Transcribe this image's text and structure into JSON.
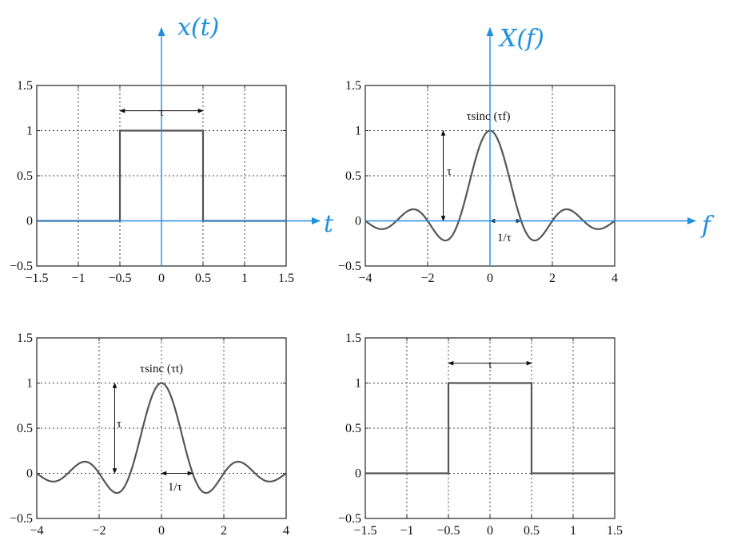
{
  "colors": {
    "curve": "#555555",
    "frame": "#222222",
    "grid": "#444444",
    "handwriting": "#1e90e0",
    "annotation": "#111111"
  },
  "chart_data": [
    {
      "type": "line",
      "name": "rect-time",
      "x": [
        -1.5,
        -0.5,
        -0.5,
        0.5,
        0.5,
        1.5
      ],
      "y": [
        0,
        0,
        1,
        1,
        0,
        0
      ],
      "xlim": [
        -1.5,
        1.5
      ],
      "ylim": [
        -0.5,
        1.5
      ],
      "xticks": [
        -1.5,
        -1,
        -0.5,
        0,
        0.5,
        1,
        1.5
      ],
      "yticks": [
        -0.5,
        0,
        0.5,
        1,
        1.5
      ],
      "xtick_labels": [
        "−1.5",
        "−1",
        "−0.5",
        "0",
        "0.5",
        "1",
        "1.5"
      ],
      "ytick_labels": [
        "−0.5",
        "0",
        "0.5",
        "1",
        "1.5"
      ],
      "grid": true,
      "annotations": {
        "width_label": "τ"
      },
      "handwriting": {
        "ylabel": "x(t)",
        "xlabel": "t"
      }
    },
    {
      "type": "line",
      "name": "sinc-frequency",
      "function": "sinc",
      "tau": 1,
      "xlim": [
        -4,
        4
      ],
      "ylim": [
        -0.5,
        1.5
      ],
      "xticks": [
        -4,
        -2,
        0,
        2,
        4
      ],
      "yticks": [
        -0.5,
        0,
        0.5,
        1,
        1.5
      ],
      "xtick_labels": [
        "−4",
        "−2",
        "0",
        "2",
        "4"
      ],
      "ytick_labels": [
        "−0.5",
        "0",
        "0.5",
        "1",
        "1.5"
      ],
      "grid": true,
      "annotations": {
        "curve_label": "τsinc (τf)",
        "height_label": "τ",
        "zero_label": "1/τ"
      },
      "handwriting": {
        "ylabel": "X(f)",
        "xlabel": "f"
      }
    },
    {
      "type": "line",
      "name": "sinc-time",
      "function": "sinc",
      "tau": 1,
      "xlim": [
        -4,
        4
      ],
      "ylim": [
        -0.5,
        1.5
      ],
      "xticks": [
        -4,
        -2,
        0,
        2,
        4
      ],
      "yticks": [
        -0.5,
        0,
        0.5,
        1,
        1.5
      ],
      "xtick_labels": [
        "−4",
        "−2",
        "0",
        "2",
        "4"
      ],
      "ytick_labels": [
        "−0.5",
        "0",
        "0.5",
        "1",
        "1.5"
      ],
      "grid": true,
      "annotations": {
        "curve_label": "τsinc (τt)",
        "height_label": "τ",
        "zero_label": "1/τ"
      }
    },
    {
      "type": "line",
      "name": "rect-frequency",
      "x": [
        -1.5,
        -0.5,
        -0.5,
        0.5,
        0.5,
        1.5
      ],
      "y": [
        0,
        0,
        1,
        1,
        0,
        0
      ],
      "xlim": [
        -1.5,
        1.5
      ],
      "ylim": [
        -0.5,
        1.5
      ],
      "xticks": [
        -1.5,
        -1,
        -0.5,
        0,
        0.5,
        1,
        1.5
      ],
      "yticks": [
        -0.5,
        0,
        0.5,
        1,
        1.5
      ],
      "xtick_labels": [
        "−1.5",
        "−1",
        "−0.5",
        "0",
        "0.5",
        "1",
        "1.5"
      ],
      "ytick_labels": [
        "−0.5",
        "0",
        "0.5",
        "1",
        "1.5"
      ],
      "grid": true,
      "annotations": {
        "width_label": "τ"
      }
    }
  ]
}
